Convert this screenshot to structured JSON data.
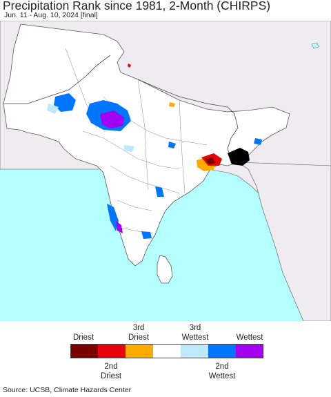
{
  "title": "Precipitation Rank since 1981, 2-Month (CHIRPS)",
  "subtitle": "Jun. 11 - Aug. 10, 2024 [final]",
  "legend": {
    "top_labels": [
      "Driest",
      "3rd\nDriest",
      "3rd\nWettest",
      "Wettest"
    ],
    "bottom_labels": [
      "2nd\nDriest",
      "2nd\nWettest"
    ],
    "colors": [
      "#7a0000",
      "#e8000b",
      "#ffaa00",
      "#ffffff",
      "#bfe8fb",
      "#0076ff",
      "#a100f2"
    ]
  },
  "map": {
    "ocean_color": "#b4ffff",
    "outside_color": "#efecf1",
    "land_color": "#ffffff",
    "no_data_color": "#000000"
  },
  "source": "Source: UCSB, Climate Hazards Center"
}
